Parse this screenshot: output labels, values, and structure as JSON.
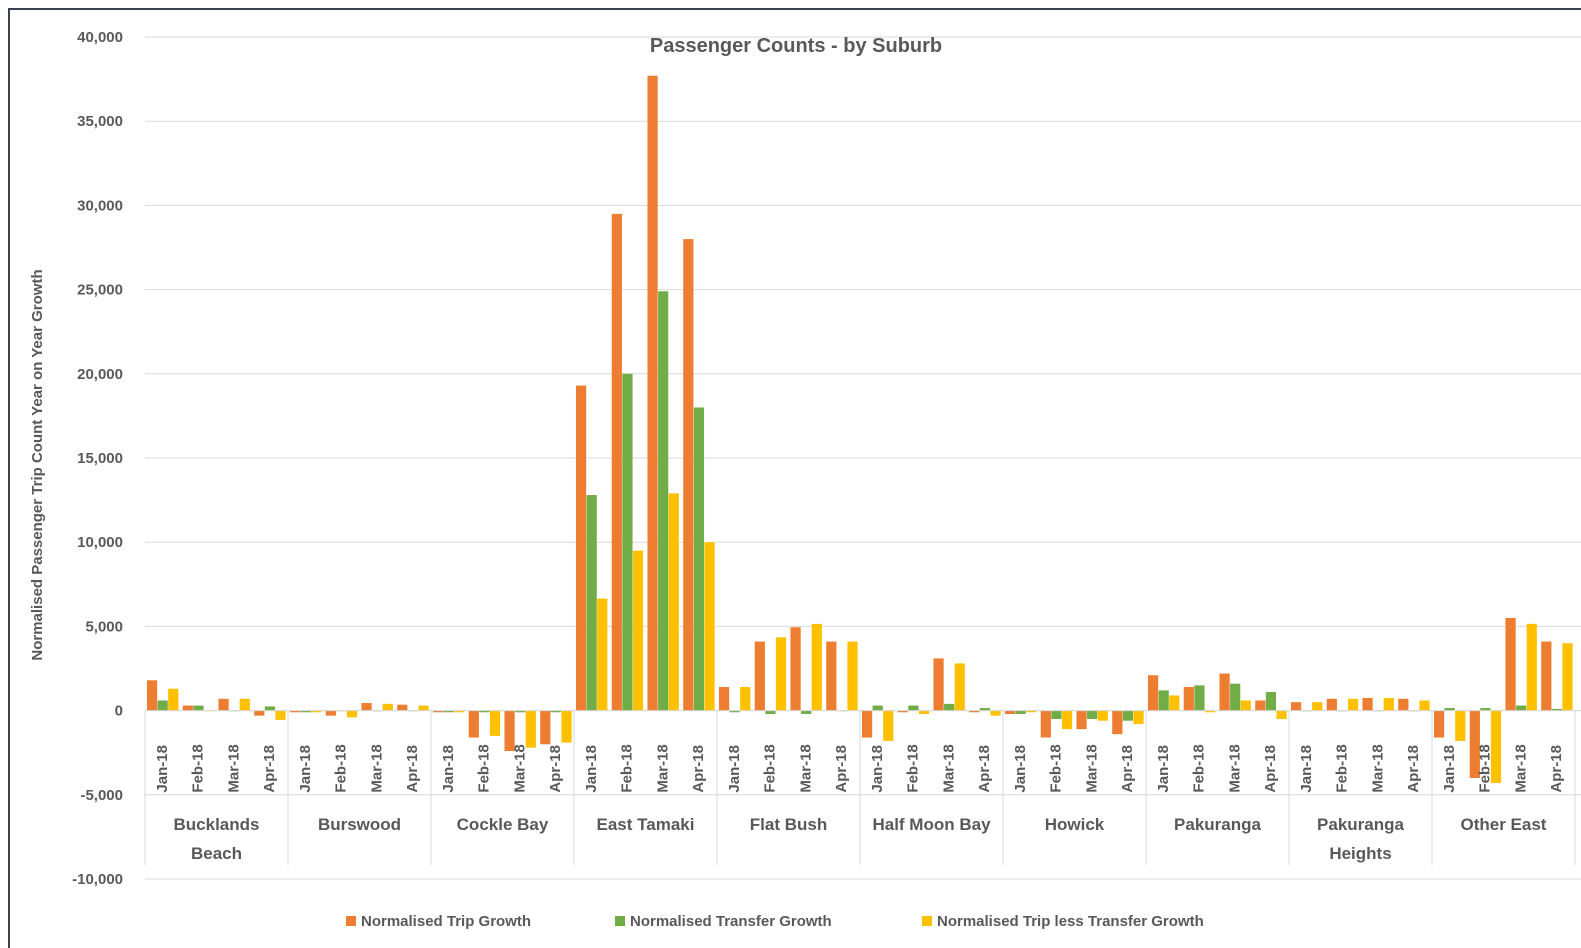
{
  "chart_data": {
    "type": "bar",
    "title": "Passenger Counts - by Suburb",
    "xlabel": "",
    "ylabel": "Normalised Passenger Trip Count Year on Year Growth",
    "ylim": [
      -10000,
      40000
    ],
    "yticks": [
      40000,
      35000,
      30000,
      25000,
      20000,
      15000,
      10000,
      5000,
      0,
      -5000,
      -10000
    ],
    "ytick_labels": [
      "40,000",
      "35,000",
      "30,000",
      "25,000",
      "20,000",
      "15,000",
      "10,000",
      "5,000",
      "0",
      "-5,000",
      "-10,000"
    ],
    "grid": true,
    "legend_position": "bottom",
    "months": [
      "Jan-18",
      "Feb-18",
      "Mar-18",
      "Apr-18"
    ],
    "groups": [
      {
        "label": "Bucklands Beach",
        "lines": [
          "Bucklands",
          "Beach"
        ]
      },
      {
        "label": "Burswood",
        "lines": [
          "Burswood"
        ]
      },
      {
        "label": "Cockle Bay",
        "lines": [
          "Cockle Bay"
        ]
      },
      {
        "label": "East Tamaki",
        "lines": [
          "East Tamaki"
        ]
      },
      {
        "label": "Flat Bush",
        "lines": [
          "Flat Bush"
        ]
      },
      {
        "label": "Half Moon Bay",
        "lines": [
          "Half Moon Bay"
        ]
      },
      {
        "label": "Howick",
        "lines": [
          "Howick"
        ]
      },
      {
        "label": "Pakuranga",
        "lines": [
          "Pakuranga"
        ]
      },
      {
        "label": "Pakuranga Heights",
        "lines": [
          "Pakuranga",
          "Heights"
        ]
      },
      {
        "label": "Other East",
        "lines": [
          "Other East"
        ]
      }
    ],
    "series": [
      {
        "name": "Normalised Trip Growth",
        "color": "#ED7D31",
        "values": [
          [
            1800,
            300,
            700,
            -300
          ],
          [
            -100,
            -300,
            450,
            350
          ],
          [
            -100,
            -1600,
            -2400,
            -2000
          ],
          [
            19300,
            29500,
            37700,
            28000
          ],
          [
            1400,
            4100,
            4950,
            4100
          ],
          [
            -1600,
            -100,
            3100,
            -100
          ],
          [
            -200,
            -1600,
            -1100,
            -1400
          ],
          [
            2100,
            1400,
            2200,
            600
          ],
          [
            500,
            700,
            750,
            700
          ],
          [
            -1600,
            -4000,
            5500,
            4100
          ]
        ]
      },
      {
        "name": "Normalised Transfer Growth",
        "color": "#70AD47",
        "values": [
          [
            600,
            300,
            0,
            250
          ],
          [
            -100,
            0,
            0,
            0
          ],
          [
            -100,
            -100,
            -100,
            -100
          ],
          [
            12800,
            20000,
            24900,
            18000
          ],
          [
            -100,
            -200,
            -200,
            0
          ],
          [
            300,
            300,
            400,
            150
          ],
          [
            -200,
            -500,
            -500,
            -600
          ],
          [
            1200,
            1500,
            1600,
            1100
          ],
          [
            0,
            0,
            0,
            0
          ],
          [
            150,
            150,
            300,
            100
          ]
        ]
      },
      {
        "name": "Normalised Trip less Transfer Growth",
        "color": "#FFC000",
        "values": [
          [
            1300,
            0,
            700,
            -550
          ],
          [
            -100,
            -400,
            400,
            300
          ],
          [
            -100,
            -1500,
            -2200,
            -1900
          ],
          [
            6650,
            9500,
            12900,
            10000
          ],
          [
            1400,
            4350,
            5150,
            4100
          ],
          [
            -1800,
            -200,
            2800,
            -300
          ],
          [
            -100,
            -1100,
            -600,
            -800
          ],
          [
            900,
            -100,
            600,
            -500
          ],
          [
            500,
            700,
            750,
            600
          ],
          [
            -1800,
            -4300,
            5150,
            4000
          ]
        ]
      }
    ]
  }
}
